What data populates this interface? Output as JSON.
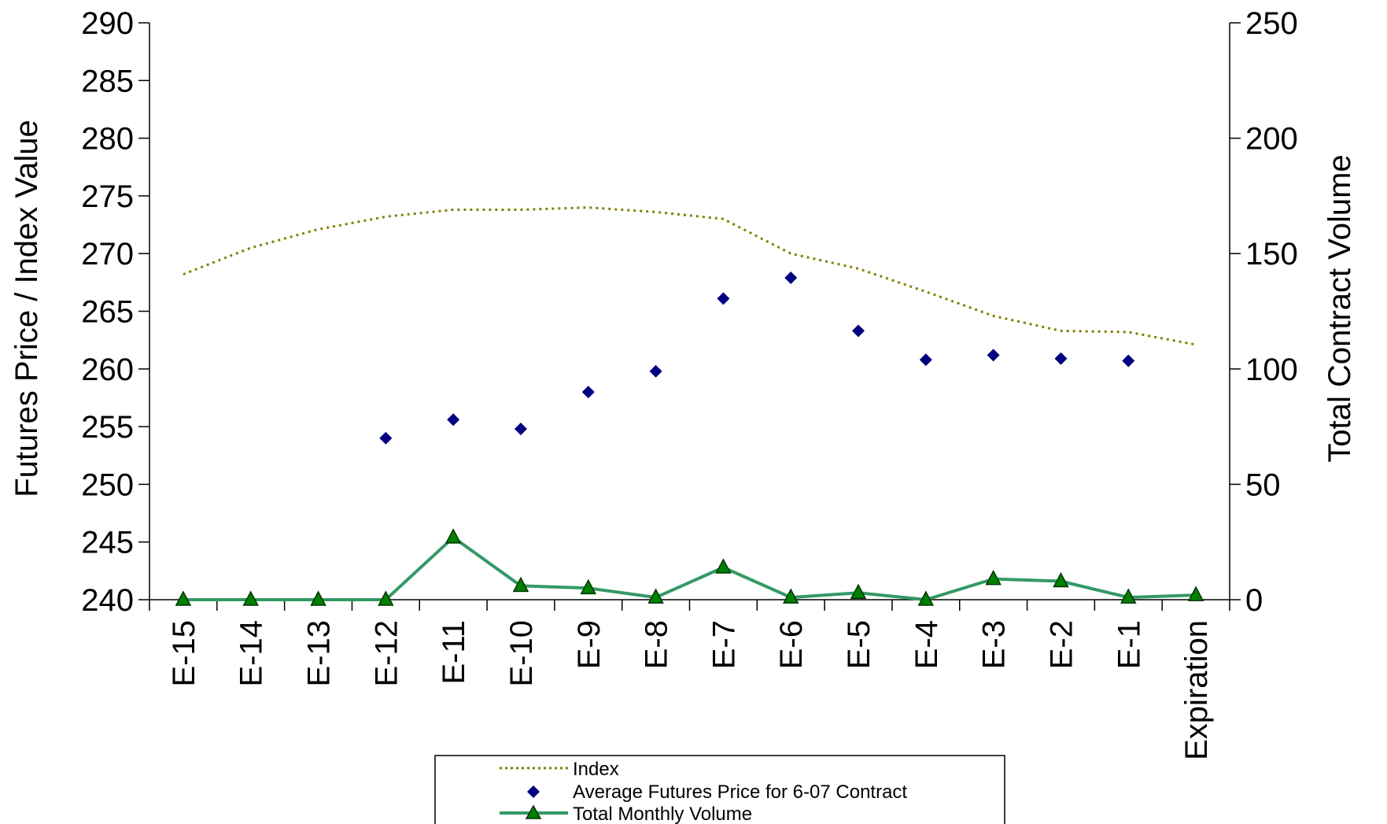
{
  "chart_data": {
    "type": "line",
    "title": "",
    "xlabel": "",
    "ylabel": "Futures Price / Index Value",
    "y2label": "Total Contract Volume",
    "categories": [
      "E-15",
      "E-14",
      "E-13",
      "E-12",
      "E-11",
      "E-10",
      "E-9",
      "E-8",
      "E-7",
      "E-6",
      "E-5",
      "E-4",
      "E-3",
      "E-2",
      "E-1",
      "Expiration"
    ],
    "ylim": [
      240,
      290
    ],
    "y_ticks": [
      240,
      245,
      250,
      255,
      260,
      265,
      270,
      275,
      280,
      285,
      290
    ],
    "y2lim": [
      0,
      250
    ],
    "y2_ticks": [
      0,
      50,
      100,
      150,
      200,
      250
    ],
    "grid": false,
    "legend_position": "bottom",
    "series": [
      {
        "name": "Index",
        "kind": "line",
        "style": "dotted",
        "axis": "left",
        "color": "#808000",
        "values": [
          268.2,
          270.5,
          272.1,
          273.2,
          273.8,
          273.8,
          274.0,
          273.6,
          273.0,
          270.0,
          268.7,
          266.7,
          264.6,
          263.3,
          263.2,
          262.1
        ]
      },
      {
        "name": "Average Futures Price for 6-07 Contract",
        "kind": "scatter",
        "marker": "diamond",
        "axis": "left",
        "color": "#000080",
        "values": [
          null,
          null,
          null,
          254.0,
          255.6,
          254.8,
          258.0,
          259.8,
          266.1,
          267.9,
          263.3,
          260.8,
          261.2,
          260.9,
          260.7,
          null
        ]
      },
      {
        "name": "Total Monthly Volume",
        "kind": "line",
        "marker": "triangle",
        "axis": "right",
        "color": "#339966",
        "values": [
          0,
          0,
          0,
          0,
          27,
          6,
          5,
          1,
          14,
          1,
          3,
          0,
          9,
          8,
          1,
          2
        ]
      }
    ]
  }
}
